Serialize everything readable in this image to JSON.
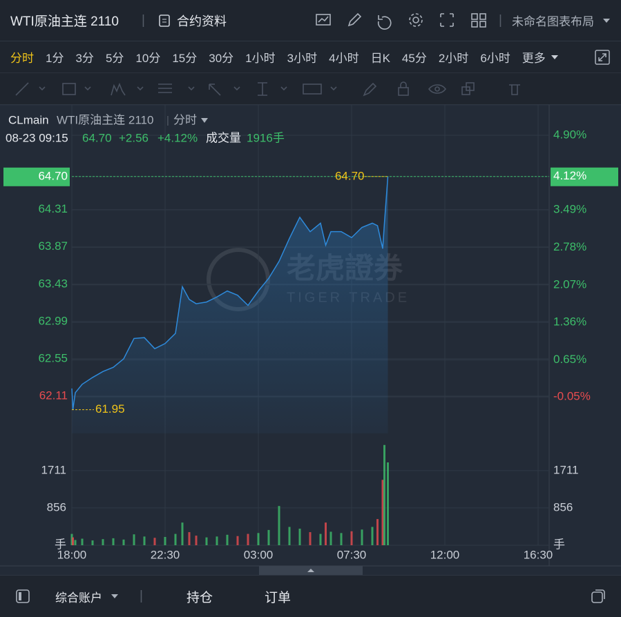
{
  "header": {
    "symbol": "WTI原油主连 2110",
    "contract_info": "合约资料",
    "layout": "未命名图表布局"
  },
  "periods": [
    "分时",
    "1分",
    "3分",
    "5分",
    "10分",
    "15分",
    "30分",
    "1小时",
    "3小时",
    "4小时",
    "日K",
    "45分",
    "2小时",
    "6小时",
    "更多"
  ],
  "chart_head": {
    "code": "CLmain",
    "name": "WTI原油主连 2110",
    "mode": "分时",
    "datetime": "08-23 09:15",
    "price": "64.70",
    "change": "+2.56",
    "pct": "+4.12%",
    "volume_label": "成交量",
    "volume": "1916手"
  },
  "watermark": {
    "cn": "老虎證券",
    "en": "TIGER TRADE"
  },
  "bottom": {
    "account": "综合账户",
    "positions": "持仓",
    "orders": "订单"
  },
  "chart_data": [
    {
      "type": "line",
      "x": [
        0,
        3,
        10,
        30,
        60,
        90,
        120,
        150,
        180,
        210,
        240,
        270,
        300,
        320,
        340,
        360,
        390,
        420,
        450,
        480,
        510,
        540,
        570,
        600,
        630,
        660,
        690,
        720,
        735,
        750,
        780,
        810,
        840,
        870,
        885,
        900,
        905,
        915
      ],
      "series": [
        {
          "name": "WTI原油主连 2110",
          "color": "#2e8bdc",
          "values": [
            62.2,
            61.95,
            62.15,
            62.25,
            62.33,
            62.4,
            62.45,
            62.55,
            62.79,
            62.8,
            62.67,
            62.73,
            62.85,
            63.4,
            63.25,
            63.2,
            63.22,
            63.28,
            63.35,
            63.3,
            63.18,
            63.35,
            63.5,
            63.7,
            63.97,
            64.22,
            64.05,
            64.15,
            63.89,
            64.05,
            64.05,
            63.98,
            64.1,
            64.15,
            64.12,
            63.85,
            64.15,
            64.7
          ]
        }
      ],
      "xlim": [
        0,
        1382
      ],
      "xticks": [
        {
          "value": 0,
          "label": "18:00"
        },
        {
          "value": 270,
          "label": "22:30"
        },
        {
          "value": 540,
          "label": "03:00"
        },
        {
          "value": 810,
          "label": "07:30"
        },
        {
          "value": 1080,
          "label": "12:00"
        },
        {
          "value": 1350,
          "label": "16:30"
        }
      ],
      "ylim": [
        61.67,
        65.48
      ],
      "yticks": [
        64.7,
        64.31,
        63.87,
        63.43,
        62.99,
        62.55,
        62.11
      ],
      "y2lim": [
        -0.74,
        5.37
      ],
      "y2ticks": [
        {
          "value": 4.9,
          "label": "4.90%"
        },
        {
          "value": 4.12,
          "label": "4.12%"
        },
        {
          "value": 3.49,
          "label": "3.49%"
        },
        {
          "value": 2.78,
          "label": "2.78%"
        },
        {
          "value": 2.07,
          "label": "2.07%"
        },
        {
          "value": 1.36,
          "label": "1.36%"
        },
        {
          "value": 0.65,
          "label": "0.65%"
        },
        {
          "value": -0.05,
          "label": "-0.05%"
        }
      ],
      "colors": {
        "up": "#3dbe6a",
        "down": "#e84c4f",
        "marker": "#f0c419"
      },
      "last_price": {
        "value": 64.7,
        "label": "64.70"
      },
      "last_pct": {
        "value": 4.12,
        "label": "4.12%"
      },
      "high": {
        "value": 64.7,
        "label": "64.70"
      },
      "low": {
        "value": 61.95,
        "label": "61.95"
      },
      "grid": true
    },
    {
      "type": "bar",
      "x": [
        0,
        3,
        10,
        30,
        60,
        90,
        120,
        150,
        180,
        210,
        240,
        270,
        300,
        320,
        340,
        360,
        390,
        420,
        450,
        480,
        510,
        540,
        570,
        600,
        630,
        660,
        690,
        720,
        735,
        750,
        780,
        810,
        840,
        870,
        885,
        900,
        905,
        915
      ],
      "values": [
        260,
        180,
        120,
        150,
        110,
        140,
        160,
        130,
        250,
        200,
        170,
        190,
        260,
        520,
        300,
        220,
        180,
        200,
        240,
        210,
        260,
        280,
        350,
        900,
        420,
        380,
        300,
        260,
        520,
        310,
        280,
        320,
        360,
        420,
        600,
        1500,
        2300,
        1900
      ],
      "xlim": [
        0,
        1382
      ],
      "ylim": [
        0,
        2375
      ],
      "yticks": [
        {
          "value": 0,
          "label": "手"
        },
        856,
        1711
      ]
    }
  ]
}
